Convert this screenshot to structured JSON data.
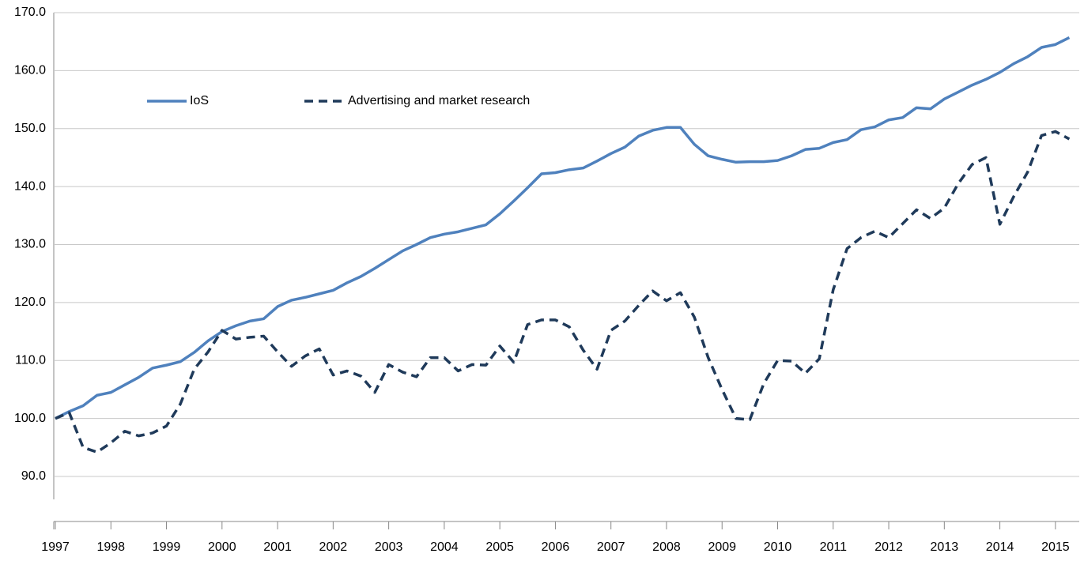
{
  "chart_data": {
    "type": "line",
    "x": [
      1997,
      1997.25,
      1997.5,
      1997.75,
      1998,
      1998.25,
      1998.5,
      1998.75,
      1999,
      1999.25,
      1999.5,
      1999.75,
      2000,
      2000.25,
      2000.5,
      2000.75,
      2001,
      2001.25,
      2001.5,
      2001.75,
      2002,
      2002.25,
      2002.5,
      2002.75,
      2003,
      2003.25,
      2003.5,
      2003.75,
      2004,
      2004.25,
      2004.5,
      2004.75,
      2005,
      2005.25,
      2005.5,
      2005.75,
      2006,
      2006.25,
      2006.5,
      2006.75,
      2007,
      2007.25,
      2007.5,
      2007.75,
      2008,
      2008.25,
      2008.5,
      2008.75,
      2009,
      2009.25,
      2009.5,
      2009.75,
      2010,
      2010.25,
      2010.5,
      2010.75,
      2011,
      2011.25,
      2011.5,
      2011.75,
      2012,
      2012.25,
      2012.5,
      2012.75,
      2013,
      2013.25,
      2013.5,
      2013.75,
      2014,
      2014.25,
      2014.5,
      2014.75,
      2015,
      2015.25
    ],
    "series": [
      {
        "name": "IoS",
        "color": "#4f81bd",
        "dash": false,
        "values": [
          100,
          101.2,
          102.2,
          104,
          104.5,
          105.8,
          107.1,
          108.7,
          109.2,
          109.8,
          111.4,
          113.4,
          115,
          116,
          116.8,
          117.2,
          119.3,
          120.4,
          120.9,
          121.5,
          122.1,
          123.4,
          124.5,
          125.9,
          127.4,
          128.9,
          130,
          131.2,
          131.8,
          132.2,
          132.8,
          133.4,
          135.3,
          137.5,
          139.8,
          142.2,
          142.4,
          142.9,
          143.2,
          144.4,
          145.7,
          146.8,
          148.7,
          149.7,
          150.2,
          150.2,
          147.3,
          145.3,
          144.7,
          144.2,
          144.3,
          144.3,
          144.5,
          145.3,
          146.4,
          146.6,
          147.6,
          148.1,
          149.8,
          150.3,
          151.5,
          151.9,
          153.6,
          153.4,
          155.1,
          156.3,
          157.5,
          158.5,
          159.7,
          161.2,
          162.4,
          164,
          164.5,
          165.7
        ]
      },
      {
        "name": "Advertising and market research",
        "color": "#1f3a5a",
        "dash": true,
        "values": [
          100,
          101,
          95,
          94.2,
          95.8,
          97.8,
          97,
          97.5,
          98.7,
          102.5,
          108.5,
          111.5,
          115.2,
          113.7,
          114,
          114.2,
          111.5,
          109,
          110.8,
          112,
          107.5,
          108.2,
          107.3,
          104.5,
          109.3,
          108,
          107.2,
          110.5,
          110.5,
          108.2,
          109.3,
          109.2,
          112.5,
          109.7,
          116.2,
          117,
          117,
          115.8,
          111.8,
          108.5,
          115.2,
          116.8,
          119.5,
          122,
          120.3,
          121.7,
          117.5,
          110.5,
          105,
          100,
          99.8,
          106,
          110,
          109.9,
          107.8,
          110.3,
          122.2,
          129.3,
          131.2,
          132.3,
          131.2,
          133.6,
          136,
          134.5,
          136.3,
          140.5,
          143.8,
          145,
          133.5,
          138.3,
          142.5,
          148.8,
          149.5,
          148.2
        ]
      }
    ],
    "xlim": [
      1997,
      2015.5
    ],
    "xticks": [
      1997,
      1998,
      1999,
      2000,
      2001,
      2002,
      2003,
      2004,
      2005,
      2006,
      2007,
      2008,
      2009,
      2010,
      2011,
      2012,
      2013,
      2014,
      2015
    ],
    "ylim": [
      90,
      170
    ],
    "yticks": [
      {
        "value": 90,
        "label": "90.0"
      },
      {
        "value": 100,
        "label": "100.0"
      },
      {
        "value": 110,
        "label": "110.0"
      },
      {
        "value": 120,
        "label": "120.0"
      },
      {
        "value": 130,
        "label": "130.0"
      },
      {
        "value": 140,
        "label": "140.0"
      },
      {
        "value": 150,
        "label": "150.0"
      },
      {
        "value": 160,
        "label": "160.0"
      },
      {
        "value": 170,
        "label": "170.0"
      }
    ],
    "grid": true
  }
}
